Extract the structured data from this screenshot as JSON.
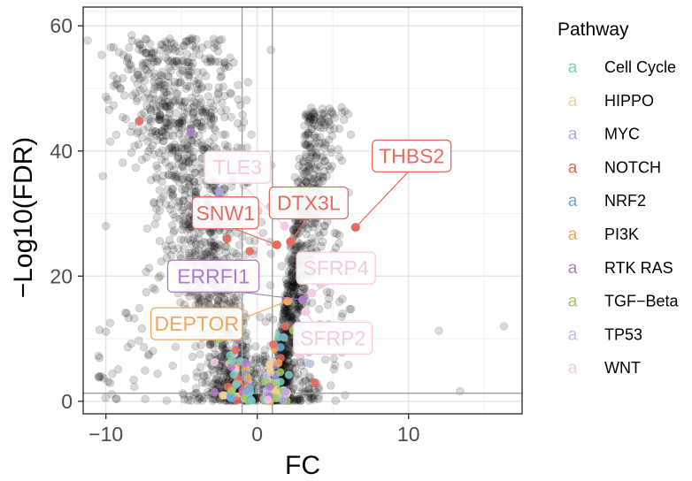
{
  "chart_data": {
    "type": "scatter",
    "xlabel": "FC",
    "ylabel": "−Log10(FDR)",
    "xlim": [
      -11.5,
      17.5
    ],
    "ylim": [
      -2,
      63
    ],
    "xticks": [
      -10,
      0,
      10
    ],
    "xtick_labels": [
      "−10",
      "0",
      "10"
    ],
    "yticks": [
      0,
      20,
      40,
      60
    ],
    "ytick_labels": [
      "0",
      "20",
      "40",
      "60"
    ],
    "grid": true,
    "thresholds": {
      "x": [
        -1,
        1
      ],
      "y": [
        1.3
      ]
    },
    "legend": {
      "title": "Pathway",
      "placement": "right",
      "key_glyph": "a",
      "entries": [
        {
          "name": "Cell Cycle",
          "color": "#7fcdbb"
        },
        {
          "name": "HIPPO",
          "color": "#f3d39b"
        },
        {
          "name": "MYC",
          "color": "#b3a7e6"
        },
        {
          "name": "NOTCH",
          "color": "#e8695f"
        },
        {
          "name": "NRF2",
          "color": "#6fa8dc"
        },
        {
          "name": "PI3K",
          "color": "#f2a65a"
        },
        {
          "name": "RTK RAS",
          "color": "#b07cc6"
        },
        {
          "name": "TGF−Beta",
          "color": "#9ccc65"
        },
        {
          "name": "TP53",
          "color": "#b9c0ee"
        },
        {
          "name": "WNT",
          "color": "#f6c9e6"
        }
      ]
    },
    "highlighted_genes": [
      {
        "label": "THBS2",
        "pathway": "NOTCH",
        "x": 6.5,
        "y": 27.8,
        "label_x": 10.2,
        "label_y": 39.2
      },
      {
        "label": "TLE3",
        "pathway": "WNT",
        "x": 1.8,
        "y": 28.0,
        "label_x": -1.3,
        "label_y": 37.4
      },
      {
        "label": "DTX3L",
        "pathway": "NOTCH",
        "x": 2.2,
        "y": 25.5,
        "label_x": 3.4,
        "label_y": 31.7
      },
      {
        "label": "SNW1",
        "pathway": "NOTCH",
        "x": 1.3,
        "y": 25.0,
        "label_x": -2.1,
        "label_y": 30.1
      },
      {
        "label": "SFRP4",
        "pathway": "WNT",
        "x": 3.6,
        "y": 17.3,
        "label_x": 5.2,
        "label_y": 21.3
      },
      {
        "label": "ERRFI1",
        "pathway": "RTK RAS",
        "x": 3.0,
        "y": 16.2,
        "label_x": -2.9,
        "label_y": 20.0
      },
      {
        "label": "DEPTOR",
        "pathway": "PI3K",
        "x": 2.0,
        "y": 16.0,
        "label_x": -4.0,
        "label_y": 12.4
      },
      {
        "label": "SFRP2",
        "pathway": "WNT",
        "x": 3.2,
        "y": 14.3,
        "label_x": 5.0,
        "label_y": 10.1
      }
    ],
    "background_points_color": "#000000"
  }
}
